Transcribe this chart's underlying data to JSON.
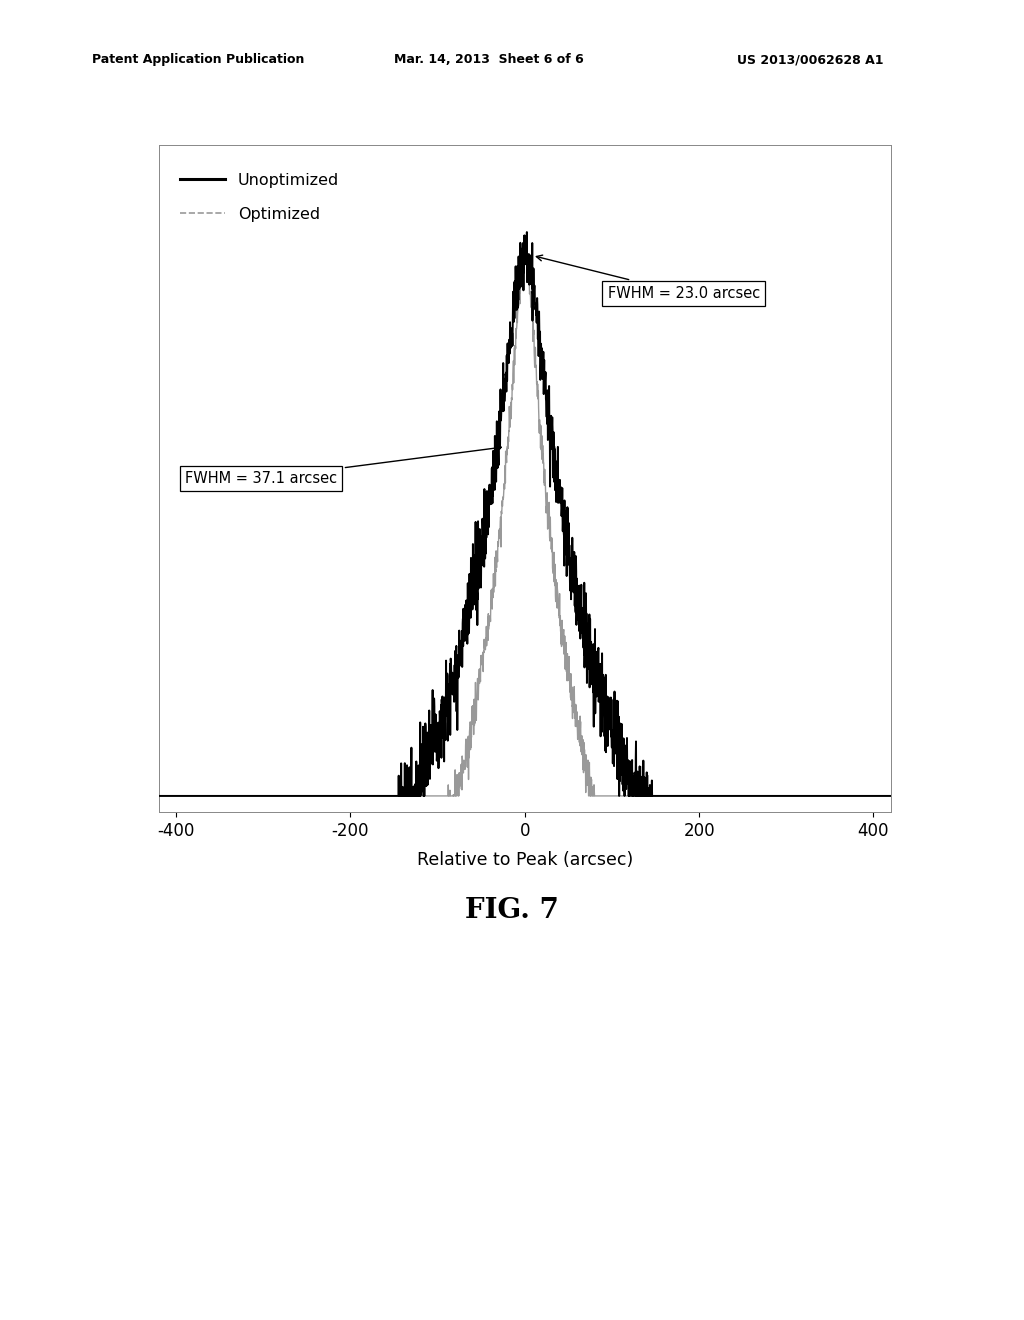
{
  "title": "FIG. 7",
  "xlabel": "Relative to Peak (arcsec)",
  "xlim": [
    -420,
    420
  ],
  "xticks": [
    -400,
    -200,
    0,
    200,
    400
  ],
  "fwhm_unopt": 37.1,
  "fwhm_opt": 23.0,
  "unopt_label": "Unoptimized",
  "opt_label": "Optimized",
  "fwhm_unopt_text": "FWHM = 37.1 arcsec",
  "fwhm_opt_text": "FWHM = 23.0 arcsec",
  "bg_color": "#ffffff",
  "unopt_color": "#000000",
  "opt_color": "#999999",
  "patent_line1": "Patent Application Publication",
  "patent_line2": "Mar. 14, 2013  Sheet 6 of 6",
  "patent_line3": "US 2013/0062628 A1"
}
